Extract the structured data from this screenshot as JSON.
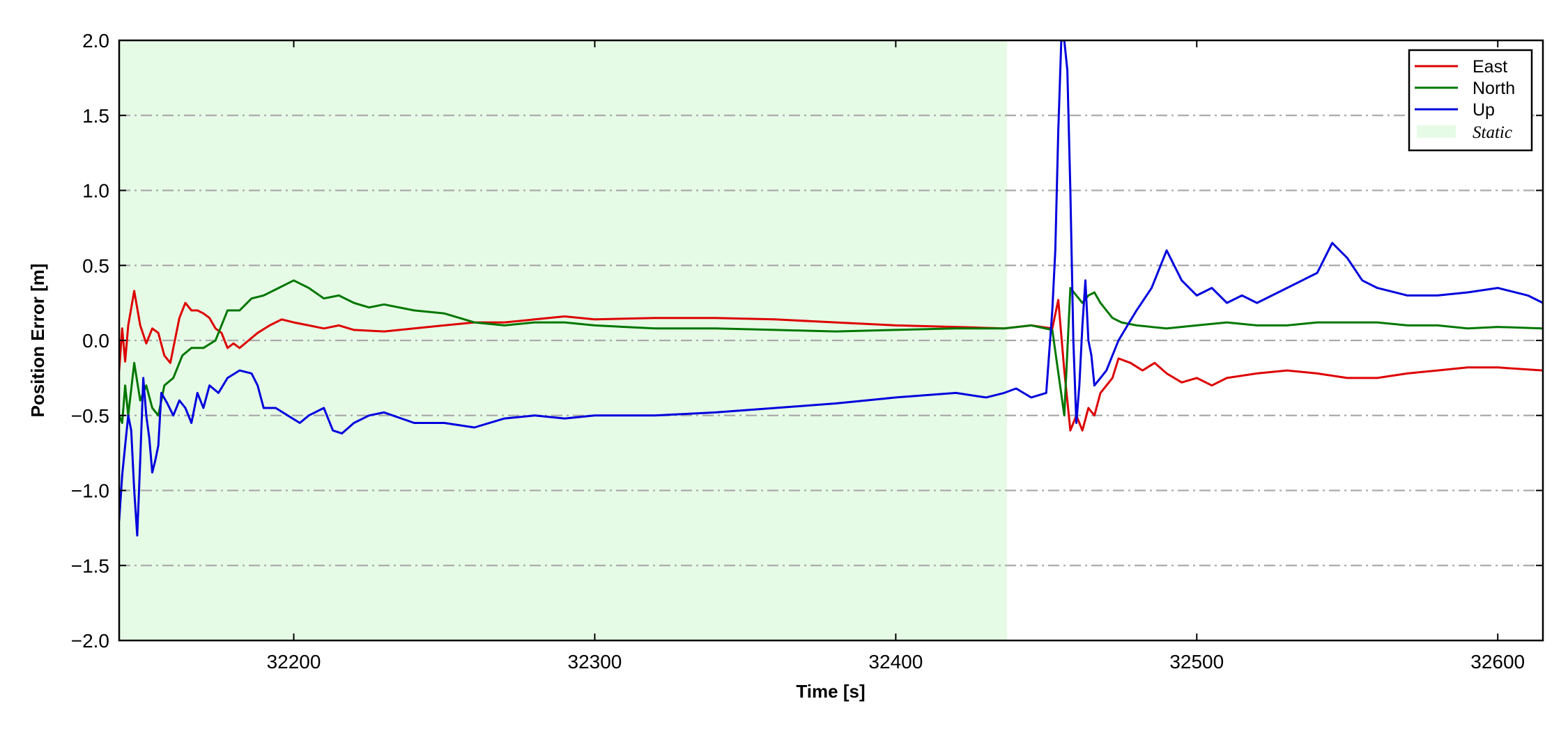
{
  "chart_data": {
    "type": "line",
    "title": "",
    "xlabel": "Time [s]",
    "ylabel": "Position Error [m]",
    "xlim": [
      32142,
      32615
    ],
    "ylim": [
      -2.0,
      2.0
    ],
    "x_ticks": [
      32200,
      32300,
      32400,
      32500,
      32600
    ],
    "x_tick_labels": [
      "32200",
      "32300",
      "32400",
      "32500",
      "32600"
    ],
    "y_ticks": [
      2.0,
      1.5,
      1.0,
      0.5,
      0.0,
      -0.5,
      -1.0,
      -1.5,
      -2.0
    ],
    "y_tick_labels": [
      "2.0",
      "1.5",
      "1.0",
      "0.5",
      "0.0",
      "−0.5",
      "−1.0",
      "−1.5",
      "−2.0"
    ],
    "grid": "horizontal dash-dot",
    "legend_position": "top-right",
    "colors": {
      "east": "#dd0000",
      "north": "#007700",
      "up": "#0000dd",
      "static": "#e6fbe6",
      "grid": "#aaaaaa"
    },
    "regions": [
      {
        "name": "Static",
        "x_start": 32142,
        "x_end": 32437
      }
    ],
    "series": [
      {
        "name": "East",
        "x": [
          32142,
          32143,
          32144,
          32145,
          32147,
          32149,
          32151,
          32153,
          32155,
          32157,
          32159,
          32162,
          32164,
          32166,
          32168,
          32170,
          32172,
          32174,
          32176,
          32178,
          32180,
          32182,
          32185,
          32188,
          32192,
          32196,
          32200,
          32205,
          32210,
          32215,
          32220,
          32230,
          32240,
          32250,
          32260,
          32270,
          32280,
          32290,
          32300,
          32320,
          32340,
          32360,
          32380,
          32400,
          32420,
          32436,
          32445,
          32452,
          32454,
          32456,
          32458,
          32460,
          32462,
          32464,
          32466,
          32468,
          32470,
          32472,
          32474,
          32478,
          32482,
          32486,
          32490,
          32495,
          32500,
          32505,
          32510,
          32520,
          32530,
          32540,
          32550,
          32560,
          32570,
          32580,
          32590,
          32600,
          32615
        ],
        "values": [
          -0.2,
          0.08,
          -0.14,
          0.1,
          0.33,
          0.1,
          -0.02,
          0.08,
          0.05,
          -0.1,
          -0.15,
          0.15,
          0.25,
          0.2,
          0.2,
          0.18,
          0.15,
          0.08,
          0.05,
          -0.05,
          -0.02,
          -0.05,
          0.0,
          0.05,
          0.1,
          0.14,
          0.12,
          0.1,
          0.08,
          0.1,
          0.07,
          0.06,
          0.08,
          0.1,
          0.12,
          0.12,
          0.14,
          0.16,
          0.14,
          0.15,
          0.15,
          0.14,
          0.12,
          0.1,
          0.09,
          0.08,
          0.1,
          0.08,
          0.27,
          -0.2,
          -0.6,
          -0.5,
          -0.6,
          -0.45,
          -0.5,
          -0.35,
          -0.3,
          -0.25,
          -0.12,
          -0.15,
          -0.2,
          -0.15,
          -0.22,
          -0.28,
          -0.25,
          -0.3,
          -0.25,
          -0.22,
          -0.2,
          -0.22,
          -0.25,
          -0.25,
          -0.22,
          -0.2,
          -0.18,
          -0.18,
          -0.2
        ]
      },
      {
        "name": "North",
        "x": [
          32142,
          32143,
          32144,
          32145,
          32147,
          32149,
          32151,
          32153,
          32155,
          32157,
          32160,
          32163,
          32166,
          32170,
          32174,
          32178,
          32182,
          32186,
          32190,
          32195,
          32200,
          32205,
          32210,
          32215,
          32220,
          32225,
          32230,
          32240,
          32250,
          32260,
          32270,
          32280,
          32290,
          32300,
          32320,
          32340,
          32360,
          32380,
          32400,
          32420,
          32436,
          32445,
          32452,
          32456,
          32458,
          32460,
          32462,
          32464,
          32466,
          32468,
          32470,
          32472,
          32475,
          32480,
          32490,
          32500,
          32510,
          32520,
          32530,
          32540,
          32550,
          32560,
          32570,
          32580,
          32590,
          32600,
          32615
        ],
        "values": [
          -0.5,
          -0.55,
          -0.3,
          -0.5,
          -0.15,
          -0.4,
          -0.3,
          -0.45,
          -0.5,
          -0.3,
          -0.25,
          -0.1,
          -0.05,
          -0.05,
          0.0,
          0.2,
          0.2,
          0.28,
          0.3,
          0.35,
          0.4,
          0.35,
          0.28,
          0.3,
          0.25,
          0.22,
          0.24,
          0.2,
          0.18,
          0.12,
          0.1,
          0.12,
          0.12,
          0.1,
          0.08,
          0.08,
          0.07,
          0.06,
          0.07,
          0.08,
          0.08,
          0.1,
          0.07,
          -0.5,
          0.35,
          0.3,
          0.25,
          0.3,
          0.32,
          0.25,
          0.2,
          0.15,
          0.12,
          0.1,
          0.08,
          0.1,
          0.12,
          0.1,
          0.1,
          0.12,
          0.12,
          0.12,
          0.1,
          0.1,
          0.08,
          0.09,
          0.08
        ]
      },
      {
        "name": "Up",
        "x": [
          32142,
          32143,
          32144,
          32145,
          32146,
          32147,
          32148,
          32149,
          32150,
          32151,
          32152,
          32153,
          32154,
          32155,
          32156,
          32158,
          32160,
          32162,
          32164,
          32166,
          32168,
          32170,
          32172,
          32175,
          32178,
          32182,
          32186,
          32188,
          32190,
          32194,
          32198,
          32202,
          32205,
          32210,
          32213,
          32216,
          32220,
          32225,
          32230,
          32240,
          32250,
          32260,
          32270,
          32280,
          32290,
          32300,
          32320,
          32340,
          32360,
          32380,
          32400,
          32420,
          32430,
          32436,
          32440,
          32445,
          32450,
          32452,
          32453,
          32454,
          32455,
          32456,
          32457,
          32458,
          32459,
          32460,
          32461,
          32462,
          32463,
          32464,
          32465,
          32466,
          32468,
          32470,
          32472,
          32474,
          32477,
          32480,
          32485,
          32490,
          32495,
          32500,
          32505,
          32510,
          32515,
          32520,
          32525,
          32530,
          32535,
          32540,
          32545,
          32550,
          32555,
          32560,
          32570,
          32580,
          32590,
          32600,
          32610,
          32615
        ],
        "values": [
          -1.2,
          -0.9,
          -0.7,
          -0.5,
          -0.6,
          -1.0,
          -1.3,
          -0.8,
          -0.25,
          -0.5,
          -0.65,
          -0.88,
          -0.8,
          -0.7,
          -0.35,
          -0.42,
          -0.5,
          -0.4,
          -0.45,
          -0.55,
          -0.35,
          -0.45,
          -0.3,
          -0.35,
          -0.25,
          -0.2,
          -0.22,
          -0.3,
          -0.45,
          -0.45,
          -0.5,
          -0.55,
          -0.5,
          -0.45,
          -0.6,
          -0.62,
          -0.55,
          -0.5,
          -0.48,
          -0.55,
          -0.55,
          -0.58,
          -0.52,
          -0.5,
          -0.52,
          -0.5,
          -0.5,
          -0.48,
          -0.45,
          -0.42,
          -0.38,
          -0.35,
          -0.38,
          -0.35,
          -0.32,
          -0.38,
          -0.35,
          0.2,
          0.6,
          1.4,
          2.0,
          2.0,
          1.8,
          1.0,
          0.0,
          -0.55,
          -0.3,
          0.1,
          0.4,
          0.0,
          -0.1,
          -0.3,
          -0.25,
          -0.2,
          -0.1,
          0.0,
          0.1,
          0.2,
          0.35,
          0.6,
          0.4,
          0.3,
          0.35,
          0.25,
          0.3,
          0.25,
          0.3,
          0.35,
          0.4,
          0.45,
          0.65,
          0.55,
          0.4,
          0.35,
          0.3,
          0.3,
          0.32,
          0.35,
          0.3,
          0.25
        ]
      }
    ]
  },
  "legend": {
    "items": [
      {
        "label": "East",
        "type": "line",
        "color_key": "east"
      },
      {
        "label": "North",
        "type": "line",
        "color_key": "north"
      },
      {
        "label": "Up",
        "type": "line",
        "color_key": "up"
      },
      {
        "label": "Static",
        "type": "patch",
        "color_key": "static"
      }
    ]
  }
}
